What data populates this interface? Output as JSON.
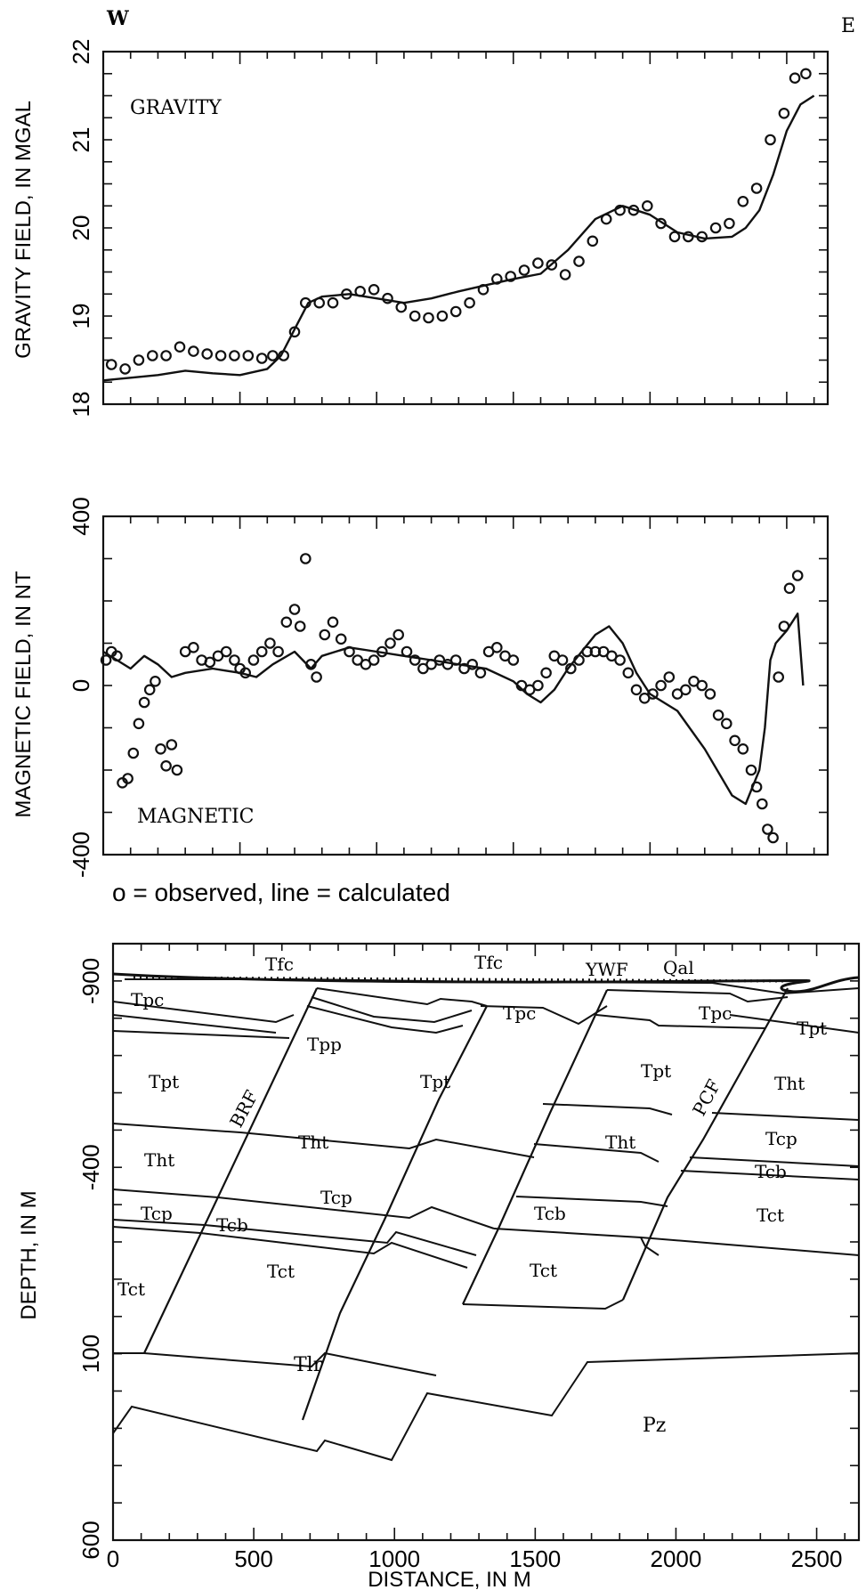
{
  "direction": {
    "west": "W",
    "east": "E"
  },
  "legend": "o = observed, line = calculated",
  "chart_data": [
    {
      "type": "scatter",
      "panel_label": "GRAVITY",
      "ylabel": "GRAVITY FIELD, IN MGAL",
      "xlim": [
        0,
        2650
      ],
      "ylim": [
        18,
        22
      ],
      "yticks": [
        18,
        19,
        20,
        21,
        22
      ],
      "series": [
        {
          "name": "observed",
          "x": [
            30,
            80,
            130,
            180,
            230,
            280,
            330,
            380,
            430,
            480,
            530,
            580,
            620,
            660,
            700,
            740,
            790,
            840,
            890,
            940,
            990,
            1040,
            1090,
            1140,
            1190,
            1240,
            1290,
            1340,
            1390,
            1440,
            1490,
            1540,
            1590,
            1640,
            1690,
            1740,
            1790,
            1840,
            1890,
            1940,
            1990,
            2040,
            2090,
            2140,
            2190,
            2240,
            2290,
            2340,
            2390,
            2440,
            2490,
            2530,
            2570
          ],
          "y": [
            18.45,
            18.4,
            18.5,
            18.55,
            18.55,
            18.65,
            18.6,
            18.57,
            18.55,
            18.55,
            18.55,
            18.52,
            18.55,
            18.55,
            18.82,
            19.15,
            19.15,
            19.15,
            19.25,
            19.28,
            19.3,
            19.2,
            19.1,
            19.0,
            18.98,
            19.0,
            19.05,
            19.15,
            19.3,
            19.42,
            19.45,
            19.52,
            19.6,
            19.58,
            19.47,
            19.62,
            19.85,
            20.1,
            20.2,
            20.2,
            20.25,
            20.05,
            19.9,
            19.9,
            19.9,
            20.0,
            20.05,
            20.3,
            20.45,
            21.0,
            21.3,
            21.7,
            21.75
          ]
        },
        {
          "name": "calculated",
          "x": [
            0,
            100,
            200,
            300,
            400,
            500,
            600,
            650,
            700,
            750,
            800,
            900,
            1000,
            1100,
            1200,
            1300,
            1400,
            1500,
            1600,
            1700,
            1800,
            1900,
            2000,
            2100,
            2200,
            2300,
            2350,
            2400,
            2450,
            2500,
            2550,
            2600
          ],
          "y": [
            18.27,
            18.3,
            18.33,
            18.38,
            18.35,
            18.33,
            18.4,
            18.55,
            18.85,
            19.15,
            19.22,
            19.25,
            19.2,
            19.15,
            19.2,
            19.28,
            19.35,
            19.42,
            19.48,
            19.75,
            20.1,
            20.25,
            20.15,
            19.95,
            19.88,
            19.9,
            20.0,
            20.2,
            20.6,
            21.1,
            21.4,
            21.5
          ]
        }
      ]
    },
    {
      "type": "scatter",
      "panel_label": "MAGNETIC",
      "ylabel": "MAGNETIC FIELD, IN NT",
      "xlim": [
        0,
        2650
      ],
      "ylim": [
        -400,
        400
      ],
      "yticks": [
        -400,
        0,
        400
      ],
      "series": [
        {
          "name": "observed",
          "x": [
            10,
            30,
            50,
            70,
            90,
            110,
            130,
            150,
            170,
            190,
            210,
            230,
            250,
            270,
            300,
            330,
            360,
            390,
            420,
            450,
            480,
            500,
            520,
            550,
            580,
            610,
            640,
            670,
            700,
            720,
            740,
            760,
            780,
            810,
            840,
            870,
            900,
            930,
            960,
            990,
            1020,
            1050,
            1080,
            1110,
            1140,
            1170,
            1200,
            1230,
            1260,
            1290,
            1320,
            1350,
            1380,
            1410,
            1440,
            1470,
            1500,
            1530,
            1560,
            1590,
            1620,
            1650,
            1680,
            1710,
            1740,
            1770,
            1800,
            1830,
            1860,
            1890,
            1920,
            1950,
            1980,
            2010,
            2040,
            2070,
            2100,
            2130,
            2160,
            2190,
            2220,
            2250,
            2280,
            2310,
            2340,
            2370,
            2390,
            2410,
            2430,
            2450,
            2470,
            2490,
            2510,
            2540
          ],
          "y": [
            60,
            80,
            70,
            -230,
            -220,
            -160,
            -90,
            -40,
            -10,
            10,
            -150,
            -190,
            -140,
            -200,
            80,
            90,
            60,
            55,
            70,
            80,
            60,
            40,
            30,
            60,
            80,
            100,
            80,
            150,
            180,
            140,
            300,
            50,
            20,
            120,
            150,
            110,
            80,
            60,
            50,
            60,
            80,
            100,
            120,
            80,
            60,
            40,
            50,
            60,
            50,
            60,
            40,
            50,
            30,
            80,
            90,
            70,
            60,
            0,
            -10,
            0,
            30,
            70,
            60,
            40,
            60,
            80,
            80,
            80,
            70,
            60,
            30,
            -10,
            -30,
            -20,
            0,
            20,
            -20,
            -10,
            10,
            0,
            -20,
            -70,
            -90,
            -130,
            -150,
            -200,
            -240,
            -280,
            -340,
            -360,
            20,
            140,
            230,
            260
          ]
        },
        {
          "name": "calculated",
          "x": [
            0,
            50,
            100,
            150,
            200,
            250,
            300,
            400,
            450,
            500,
            560,
            620,
            700,
            760,
            800,
            850,
            900,
            1000,
            1100,
            1200,
            1300,
            1400,
            1500,
            1550,
            1600,
            1650,
            1700,
            1800,
            1850,
            1900,
            1950,
            2000,
            2100,
            2200,
            2300,
            2350,
            2400,
            2420,
            2440,
            2460,
            2500,
            2540,
            2560
          ],
          "y": [
            80,
            60,
            40,
            70,
            50,
            20,
            30,
            40,
            35,
            30,
            20,
            50,
            80,
            40,
            70,
            80,
            90,
            80,
            70,
            60,
            50,
            40,
            10,
            -20,
            -40,
            -10,
            40,
            120,
            140,
            100,
            30,
            -20,
            -60,
            -150,
            -260,
            -280,
            -200,
            -100,
            60,
            100,
            130,
            170,
            0
          ]
        }
      ]
    },
    {
      "type": "cross-section",
      "ylabel": "DEPTH, IN M",
      "xlabel": "DISTANCE, IN M",
      "xlim": [
        0,
        2650
      ],
      "xticks": [
        0,
        500,
        1000,
        1500,
        2000,
        2500
      ],
      "ylim": [
        -1000,
        600
      ],
      "yticks": [
        -900,
        -400,
        100,
        600
      ],
      "unit_labels": {
        "Tfc_1": "Tfc",
        "Tfc_2": "Tfc",
        "YWF": "YWF",
        "Qal": "Qal",
        "Tpc_1": "Tpc",
        "Tpc_2": "Tpc",
        "Tpc_3": "Tpc",
        "Tpp": "Tpp",
        "Tpt_1": "Tpt",
        "Tpt_2": "Tpt",
        "Tpt_3": "Tpt",
        "Tpt_4": "Tpt",
        "BRF": "BRF",
        "PCF": "PCF",
        "Tht_1": "Tht",
        "Tht_2": "Tht",
        "Tht_3": "Tht",
        "Tht_4": "Tht",
        "Tcp_1": "Tcp",
        "Tcp_2": "Tcp",
        "Tcp_3": "Tcp",
        "Tcb_1": "Tcb",
        "Tcb_2": "Tcb",
        "Tcb_3": "Tcb",
        "Tct_1": "Tct",
        "Tct_2": "Tct",
        "Tct_3": "Tct",
        "Tct_4": "Tct",
        "Tlr": "Tlr",
        "Pz": "Pz"
      }
    }
  ]
}
